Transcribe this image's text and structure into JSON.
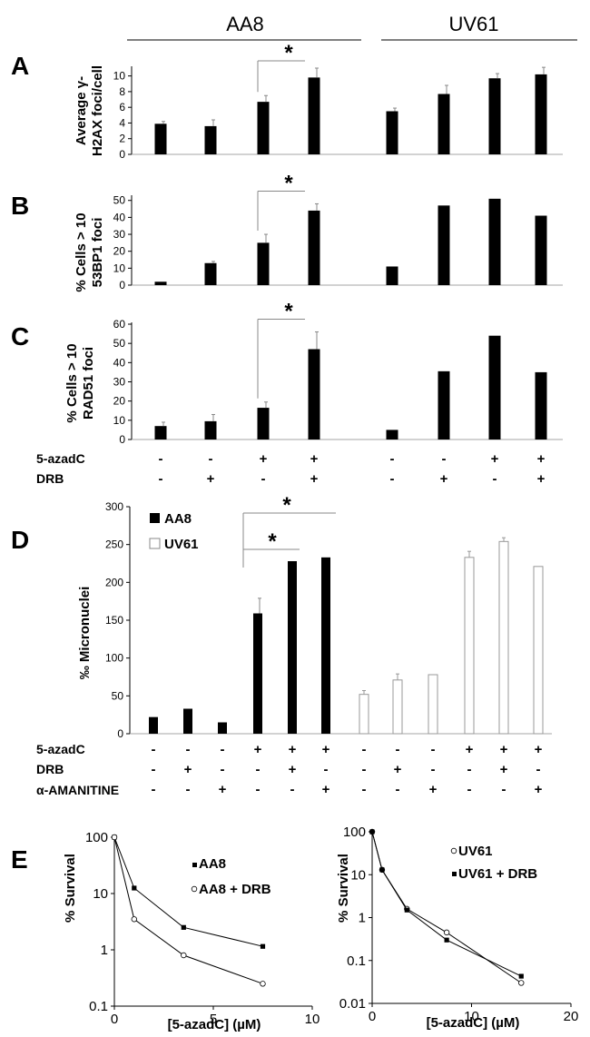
{
  "groups": [
    "AA8",
    "UV61"
  ],
  "panels": [
    {
      "label": "A",
      "ylabel": [
        "Average γ-",
        "H2AX foci/cell"
      ],
      "yticks": [
        0,
        2,
        4,
        6,
        8,
        10
      ],
      "ylim": [
        0,
        11
      ],
      "star": "*",
      "bracket": [
        2,
        3
      ],
      "values": [
        3.9,
        3.6,
        6.7,
        9.8,
        5.5,
        7.7,
        9.7,
        10.2
      ],
      "errors": [
        0.3,
        0.8,
        0.8,
        1.2,
        0.4,
        1.1,
        0.6,
        0.9
      ]
    },
    {
      "label": "B",
      "ylabel": [
        "% Cells > 10",
        "53BP1 foci"
      ],
      "yticks": [
        0,
        10,
        20,
        30,
        40,
        50
      ],
      "ylim": [
        0,
        52
      ],
      "star": "*",
      "bracket": [
        2,
        3
      ],
      "values": [
        2,
        13,
        25,
        44,
        11,
        47,
        51,
        41
      ],
      "errors": [
        0,
        1,
        5,
        4,
        0,
        0,
        0,
        0
      ]
    },
    {
      "label": "C",
      "ylabel": [
        "% Cells > 10",
        "RAD51 foci"
      ],
      "yticks": [
        0,
        10,
        20,
        30,
        40,
        50,
        60
      ],
      "ylim": [
        0,
        60
      ],
      "star": "*",
      "bracket": [
        2,
        3
      ],
      "values": [
        7,
        9.5,
        16.5,
        47,
        5,
        35.5,
        54,
        35
      ],
      "errors": [
        2,
        3.5,
        3,
        9,
        0,
        0,
        0,
        0
      ]
    }
  ],
  "conditions_abc": [
    {
      "name": "5-azadC",
      "signs": [
        "-",
        "-",
        "+",
        "+",
        "-",
        "-",
        "+",
        "+"
      ]
    },
    {
      "name": "DRB",
      "signs": [
        "-",
        "+",
        "-",
        "+",
        "-",
        "+",
        "-",
        "+"
      ]
    }
  ],
  "panel_d": {
    "label": "D",
    "ylabel": "‰  Micronuclei",
    "yticks": [
      0,
      50,
      100,
      150,
      200,
      250,
      300
    ],
    "ylim": [
      0,
      300
    ],
    "legend": [
      "AA8",
      "UV61"
    ],
    "star": "*",
    "brackets": [
      [
        3,
        4
      ],
      [
        3,
        5
      ]
    ],
    "aa8_values": [
      22,
      33,
      15,
      159,
      228,
      233
    ],
    "aa8_errors": [
      0,
      0,
      0,
      20,
      0,
      0
    ],
    "uv61_values": [
      52,
      71,
      78,
      233,
      254,
      221
    ],
    "uv61_errors": [
      5,
      8,
      0,
      8,
      5,
      0
    ]
  },
  "conditions_d": [
    {
      "name": "5-azadC",
      "signs": [
        "-",
        "-",
        "-",
        "+",
        "+",
        "+",
        "-",
        "-",
        "-",
        "+",
        "+",
        "+"
      ]
    },
    {
      "name": "DRB",
      "signs": [
        "-",
        "+",
        "-",
        "-",
        "+",
        "-",
        "-",
        "+",
        "-",
        "-",
        "+",
        "-"
      ]
    },
    {
      "name": "α-AMANITINE",
      "signs": [
        "-",
        "-",
        "+",
        "-",
        "-",
        "+",
        "-",
        "-",
        "+",
        "-",
        "-",
        "+"
      ]
    }
  ],
  "chart_data": [
    {
      "type": "bar",
      "title": "A",
      "ylabel": "Average γ-H2AX foci/cell",
      "categories": [
        "AA8 -/-",
        "AA8 -/DRB",
        "AA8 5-azadC/-",
        "AA8 5-azadC/DRB",
        "UV61 -/-",
        "UV61 -/DRB",
        "UV61 5-azadC/-",
        "UV61 5-azadC/DRB"
      ],
      "values": [
        3.9,
        3.6,
        6.7,
        9.8,
        5.5,
        7.7,
        9.7,
        10.2
      ],
      "ylim": [
        0,
        11
      ]
    },
    {
      "type": "bar",
      "title": "B",
      "ylabel": "% Cells > 10 53BP1 foci",
      "categories": [
        "AA8 -/-",
        "AA8 -/DRB",
        "AA8 5-azadC/-",
        "AA8 5-azadC/DRB",
        "UV61 -/-",
        "UV61 -/DRB",
        "UV61 5-azadC/-",
        "UV61 5-azadC/DRB"
      ],
      "values": [
        2,
        13,
        25,
        44,
        11,
        47,
        51,
        41
      ],
      "ylim": [
        0,
        52
      ]
    },
    {
      "type": "bar",
      "title": "C",
      "ylabel": "% Cells > 10 RAD51 foci",
      "categories": [
        "AA8 -/-",
        "AA8 -/DRB",
        "AA8 5-azadC/-",
        "AA8 5-azadC/DRB",
        "UV61 -/-",
        "UV61 -/DRB",
        "UV61 5-azadC/-",
        "UV61 5-azadC/DRB"
      ],
      "values": [
        7,
        9.5,
        16.5,
        47,
        5,
        35.5,
        54,
        35
      ],
      "ylim": [
        0,
        60
      ]
    },
    {
      "type": "bar",
      "title": "D",
      "ylabel": "‰ Micronuclei",
      "ylim": [
        0,
        300
      ],
      "series": [
        {
          "name": "AA8",
          "values": [
            22,
            33,
            15,
            159,
            228,
            233
          ]
        },
        {
          "name": "UV61",
          "values": [
            52,
            71,
            78,
            233,
            254,
            221
          ]
        }
      ]
    },
    {
      "type": "line",
      "title": "E left",
      "xlabel": "[5-azadC] (µM)",
      "ylabel": "% Survival",
      "yscale": "log",
      "xlim": [
        0,
        10
      ],
      "ylim": [
        0.1,
        100
      ],
      "xticks": [
        0,
        5,
        10
      ],
      "yticks": [
        0.1,
        1,
        10,
        100
      ],
      "series": [
        {
          "name": "AA8",
          "marker": "square",
          "x": [
            0,
            1,
            3.5,
            7.5
          ],
          "y": [
            100,
            12.5,
            2.5,
            1.15
          ]
        },
        {
          "name": "AA8 + DRB",
          "marker": "circle",
          "x": [
            0,
            1,
            3.5,
            7.5
          ],
          "y": [
            100,
            3.5,
            0.8,
            0.25
          ]
        }
      ]
    },
    {
      "type": "line",
      "title": "E right",
      "xlabel": "[5-azadC] (µM)",
      "ylabel": "% Survival",
      "yscale": "log",
      "xlim": [
        0,
        20
      ],
      "ylim": [
        0.01,
        100
      ],
      "xticks": [
        0,
        10,
        20
      ],
      "yticks": [
        0.01,
        0.1,
        1,
        10,
        100
      ],
      "series": [
        {
          "name": "UV61",
          "marker": "circle",
          "x": [
            0,
            1,
            3.5,
            7.5,
            15
          ],
          "y": [
            100,
            13,
            1.6,
            0.45,
            0.03
          ]
        },
        {
          "name": "UV61 + DRB",
          "marker": "square",
          "x": [
            0,
            1,
            3.5,
            7.5,
            15
          ],
          "y": [
            100,
            13,
            1.5,
            0.3,
            0.043
          ]
        }
      ]
    }
  ],
  "panel_e": {
    "label": "E",
    "ylabel": "% Survival",
    "xlabel": "[5-azadC] (µM)",
    "left_xticks": [
      "0",
      "5",
      "10"
    ],
    "left_yticks": [
      "100",
      "10",
      "1",
      "0.1"
    ],
    "right_xticks": [
      "0",
      "10",
      "20"
    ],
    "right_yticks": [
      "100",
      "10",
      "1",
      "0.1",
      "0.01"
    ],
    "left_legend": [
      "AA8",
      "AA8 + DRB"
    ],
    "right_legend": [
      "UV61",
      "UV61 + DRB"
    ]
  }
}
